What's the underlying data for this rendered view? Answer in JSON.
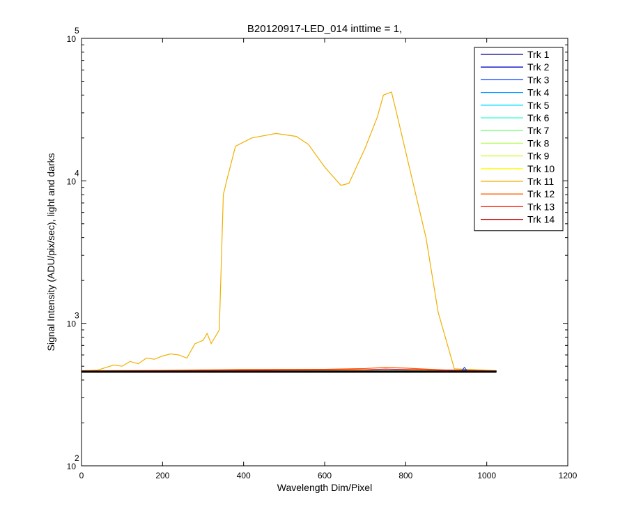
{
  "chart_data": {
    "type": "line",
    "title": "B20120917-LED_014 inttime = 1,",
    "xlabel": "Wavelength Dim/Pixel",
    "ylabel": "Signal Intensity (ADU/pix/sec), light and darks",
    "xlim": [
      0,
      1200
    ],
    "ylim": [
      100,
      100000
    ],
    "yscale": "log",
    "grid": false,
    "legend_position": "top-right",
    "x_ticks": [
      "0",
      "200",
      "400",
      "600",
      "800",
      "1000",
      "1200"
    ],
    "y_ticks": [
      {
        "base": "10",
        "exp": "2"
      },
      {
        "base": "10",
        "exp": "3"
      },
      {
        "base": "10",
        "exp": "4"
      },
      {
        "base": "10",
        "exp": "5"
      }
    ],
    "series": [
      {
        "name": "Trk 1",
        "color": "#00008f",
        "x": [
          0,
          1024
        ],
        "y": [
          460,
          460
        ]
      },
      {
        "name": "Trk 2",
        "color": "#0000c8",
        "x": [
          0,
          1024
        ],
        "y": [
          460,
          460
        ]
      },
      {
        "name": "Trk 3",
        "color": "#0040ff",
        "x": [
          0,
          945,
          1024
        ],
        "y": [
          460,
          470,
          460
        ]
      },
      {
        "name": "Trk 4",
        "color": "#0090ff",
        "x": [
          0,
          1024
        ],
        "y": [
          460,
          460
        ]
      },
      {
        "name": "Trk 5",
        "color": "#00e0ff",
        "x": [
          0,
          1024
        ],
        "y": [
          460,
          460
        ]
      },
      {
        "name": "Trk 6",
        "color": "#30ffcf",
        "x": [
          0,
          1024
        ],
        "y": [
          462,
          462
        ]
      },
      {
        "name": "Trk 7",
        "color": "#80ff80",
        "x": [
          0,
          1024
        ],
        "y": [
          462,
          462
        ]
      },
      {
        "name": "Trk 8",
        "color": "#b0ff50",
        "x": [
          0,
          1024
        ],
        "y": [
          463,
          463
        ]
      },
      {
        "name": "Trk 9",
        "color": "#d0ff30",
        "x": [
          0,
          1024
        ],
        "y": [
          463,
          463
        ]
      },
      {
        "name": "Trk 10",
        "color": "#ffff00",
        "x": [
          0,
          1024
        ],
        "y": [
          464,
          464
        ]
      },
      {
        "name": "Trk 11",
        "color": "#f0b000",
        "x": [
          0,
          40,
          80,
          100,
          120,
          140,
          160,
          180,
          200,
          220,
          240,
          260,
          280,
          300,
          310,
          320,
          340,
          350,
          360,
          380,
          420,
          480,
          530,
          560,
          600,
          640,
          660,
          700,
          730,
          745,
          765,
          780,
          800,
          850,
          880,
          920,
          1024
        ],
        "y": [
          465,
          470,
          510,
          500,
          540,
          520,
          570,
          560,
          590,
          610,
          600,
          570,
          720,
          760,
          850,
          720,
          900,
          8000,
          10500,
          17500,
          20000,
          21500,
          20500,
          18000,
          12500,
          9300,
          9600,
          17000,
          28000,
          40000,
          42000,
          28000,
          16000,
          4000,
          1200,
          480,
          465
        ]
      },
      {
        "name": "Trk 12",
        "color": "#ff6000",
        "x": [
          0,
          200,
          400,
          600,
          700,
          750,
          800,
          900,
          1024
        ],
        "y": [
          465,
          468,
          475,
          476,
          482,
          490,
          485,
          470,
          465
        ]
      },
      {
        "name": "Trk 13",
        "color": "#ff1a00",
        "x": [
          0,
          300,
          500,
          700,
          750,
          800,
          1024
        ],
        "y": [
          462,
          465,
          470,
          472,
          478,
          474,
          462
        ]
      },
      {
        "name": "Trk 14",
        "color": "#c00000",
        "x": [
          0,
          1024
        ],
        "y": [
          462,
          462
        ]
      }
    ]
  }
}
